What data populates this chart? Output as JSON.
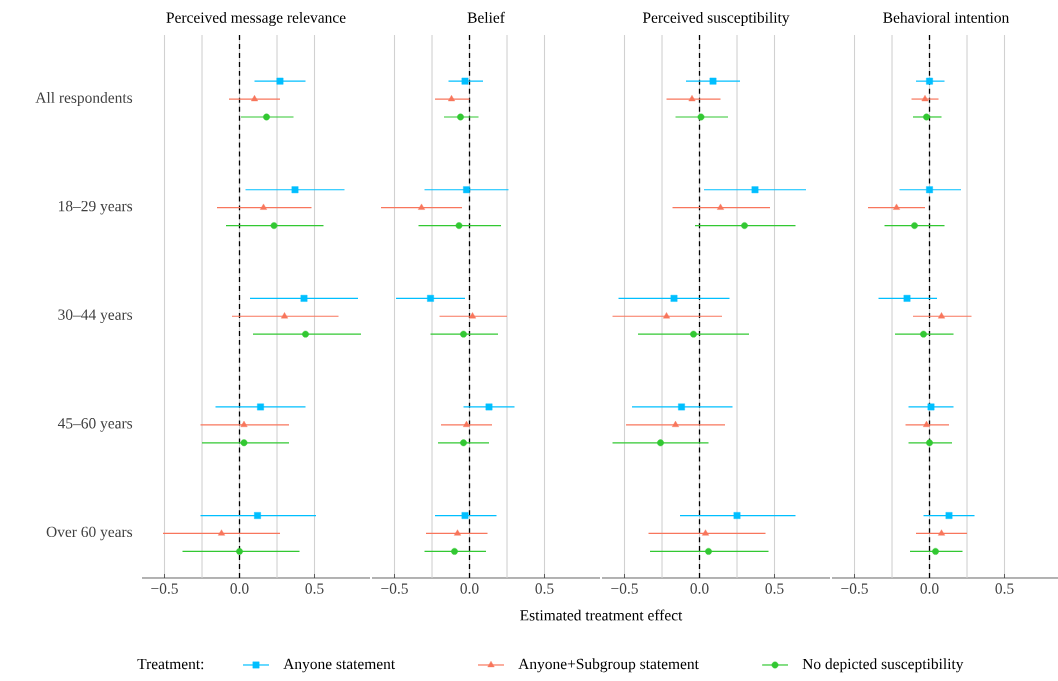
{
  "chart_data": [
    {
      "type": "scatter",
      "orientation": "horizontal",
      "title": "Perceived message relevance",
      "legend_title": "Treatment:",
      "legend": "bottom",
      "grid": "x",
      "categories": [
        "All respondents",
        "18–29 years",
        "30–44 years",
        "45–60 years",
        "Over 60 years"
      ],
      "xlim": [
        -0.65,
        0.87
      ],
      "xticks": [
        {
          "value": -0.5,
          "label": "−0.5"
        },
        {
          "value": -0.25,
          "label": null
        },
        {
          "value": 0,
          "label": "0.0"
        },
        {
          "value": 0.25,
          "label": null
        },
        {
          "value": 0.5,
          "label": "0.5"
        }
      ],
      "ref_lines": [
        {
          "axis": "x",
          "value": 0,
          "color": "#000000",
          "line_style": "dashed"
        }
      ],
      "series": [
        {
          "name": "Anyone statement",
          "color": "#00bfff",
          "marker": "square",
          "values": [
            0.27,
            0.37,
            0.43,
            0.14,
            0.12
          ],
          "errors": [
            [
              0.1,
              0.44
            ],
            [
              0.04,
              0.7
            ],
            [
              0.07,
              0.79
            ],
            [
              -0.16,
              0.44
            ],
            [
              -0.26,
              0.51
            ]
          ]
        },
        {
          "name": "Anyone+Subgroup statement",
          "color": "#f8765c",
          "marker": "triangle",
          "values": [
            0.1,
            0.16,
            0.3,
            0.03,
            -0.12
          ],
          "errors": [
            [
              -0.07,
              0.27
            ],
            [
              -0.15,
              0.48
            ],
            [
              -0.05,
              0.66
            ],
            [
              -0.26,
              0.33
            ],
            [
              -0.51,
              0.27
            ]
          ]
        },
        {
          "name": "No depicted susceptibility",
          "color": "#32c832",
          "marker": "circle",
          "values": [
            0.18,
            0.23,
            0.44,
            0.03,
            0.0
          ],
          "errors": [
            [
              0.01,
              0.36
            ],
            [
              -0.09,
              0.56
            ],
            [
              0.09,
              0.81
            ],
            [
              -0.25,
              0.33
            ],
            [
              -0.38,
              0.4
            ]
          ]
        }
      ]
    },
    {
      "type": "scatter",
      "orientation": "horizontal",
      "title": "Belief",
      "xlabel": "Estimated treatment effect",
      "grid": "x",
      "tick_labels": "x",
      "categories": [
        null,
        null,
        null,
        null,
        null
      ],
      "xlim": [
        -0.65,
        0.87
      ],
      "xticks": [
        {
          "value": -0.5,
          "label": "−0.5"
        },
        {
          "value": -0.25,
          "label": null
        },
        {
          "value": 0,
          "label": "0.0"
        },
        {
          "value": 0.25,
          "label": null
        },
        {
          "value": 0.5,
          "label": "0.5"
        }
      ],
      "ref_lines": [
        {
          "axis": "x",
          "value": 0,
          "color": "#000000",
          "line_style": "dashed"
        }
      ],
      "series": [
        {
          "color": "#00bfff",
          "marker": "square",
          "values": [
            -0.03,
            -0.02,
            -0.26,
            0.13,
            -0.03
          ],
          "errors": [
            [
              -0.14,
              0.09
            ],
            [
              -0.3,
              0.26
            ],
            [
              -0.49,
              -0.03
            ],
            [
              -0.04,
              0.3
            ],
            [
              -0.23,
              0.18
            ]
          ]
        },
        {
          "color": "#f8765c",
          "marker": "triangle",
          "values": [
            -0.12,
            -0.32,
            0.02,
            -0.02,
            -0.08
          ],
          "errors": [
            [
              -0.23,
              0.0
            ],
            [
              -0.59,
              -0.05
            ],
            [
              -0.2,
              0.25
            ],
            [
              -0.19,
              0.15
            ],
            [
              -0.29,
              0.12
            ]
          ]
        },
        {
          "color": "#32c832",
          "marker": "circle",
          "values": [
            -0.06,
            -0.07,
            -0.04,
            -0.04,
            -0.1
          ],
          "errors": [
            [
              -0.17,
              0.06
            ],
            [
              -0.34,
              0.21
            ],
            [
              -0.26,
              0.19
            ],
            [
              -0.21,
              0.13
            ],
            [
              -0.3,
              0.11
            ]
          ]
        }
      ]
    },
    {
      "type": "scatter",
      "orientation": "horizontal",
      "title": "Perceived susceptibility",
      "grid": "x",
      "tick_labels": "x",
      "categories": [
        null,
        null,
        null,
        null,
        null
      ],
      "xlim": [
        -0.65,
        0.87
      ],
      "xticks": [
        {
          "value": -0.5,
          "label": "−0.5"
        },
        {
          "value": -0.25,
          "label": null
        },
        {
          "value": 0,
          "label": "0.0"
        },
        {
          "value": 0.25,
          "label": null
        },
        {
          "value": 0.5,
          "label": "0.5"
        }
      ],
      "ref_lines": [
        {
          "axis": "x",
          "value": 0,
          "color": "#000000",
          "line_style": "dashed"
        }
      ],
      "series": [
        {
          "color": "#00bfff",
          "marker": "square",
          "values": [
            0.09,
            0.37,
            -0.17,
            -0.12,
            0.25
          ],
          "errors": [
            [
              -0.09,
              0.27
            ],
            [
              0.03,
              0.71
            ],
            [
              -0.54,
              0.2
            ],
            [
              -0.45,
              0.22
            ],
            [
              -0.13,
              0.64
            ]
          ]
        },
        {
          "color": "#f8765c",
          "marker": "triangle",
          "values": [
            -0.05,
            0.14,
            -0.22,
            -0.16,
            0.04
          ],
          "errors": [
            [
              -0.22,
              0.14
            ],
            [
              -0.18,
              0.47
            ],
            [
              -0.58,
              0.15
            ],
            [
              -0.49,
              0.17
            ],
            [
              -0.34,
              0.44
            ]
          ]
        },
        {
          "color": "#32c832",
          "marker": "circle",
          "values": [
            0.01,
            0.3,
            -0.04,
            -0.26,
            0.06
          ],
          "errors": [
            [
              -0.16,
              0.19
            ],
            [
              -0.03,
              0.64
            ],
            [
              -0.41,
              0.33
            ],
            [
              -0.58,
              0.06
            ],
            [
              -0.33,
              0.46
            ]
          ]
        }
      ]
    },
    {
      "type": "scatter",
      "orientation": "horizontal",
      "title": "Behavioral intention",
      "grid": "x",
      "tick_labels": "x",
      "categories": [
        null,
        null,
        null,
        null,
        null
      ],
      "xlim": [
        -0.65,
        0.87
      ],
      "xticks": [
        {
          "value": -0.5,
          "label": "−0.5"
        },
        {
          "value": -0.25,
          "label": null
        },
        {
          "value": 0,
          "label": "0.0"
        },
        {
          "value": 0.25,
          "label": null
        },
        {
          "value": 0.5,
          "label": "0.5"
        }
      ],
      "ref_lines": [
        {
          "axis": "x",
          "value": 0,
          "color": "#000000",
          "line_style": "dashed"
        }
      ],
      "series": [
        {
          "color": "#00bfff",
          "marker": "square",
          "values": [
            0.0,
            0.0,
            -0.15,
            0.01,
            0.13
          ],
          "errors": [
            [
              -0.09,
              0.1
            ],
            [
              -0.2,
              0.21
            ],
            [
              -0.34,
              0.05
            ],
            [
              -0.14,
              0.16
            ],
            [
              -0.04,
              0.3
            ]
          ]
        },
        {
          "color": "#f8765c",
          "marker": "triangle",
          "values": [
            -0.03,
            -0.22,
            0.08,
            -0.02,
            0.08
          ],
          "errors": [
            [
              -0.12,
              0.06
            ],
            [
              -0.41,
              -0.03
            ],
            [
              -0.11,
              0.28
            ],
            [
              -0.16,
              0.13
            ],
            [
              -0.09,
              0.25
            ]
          ]
        },
        {
          "color": "#32c832",
          "marker": "circle",
          "values": [
            -0.02,
            -0.1,
            -0.04,
            0.0,
            0.04
          ],
          "errors": [
            [
              -0.11,
              0.08
            ],
            [
              -0.3,
              0.1
            ],
            [
              -0.23,
              0.16
            ],
            [
              -0.14,
              0.15
            ],
            [
              -0.13,
              0.22
            ]
          ]
        }
      ]
    }
  ]
}
